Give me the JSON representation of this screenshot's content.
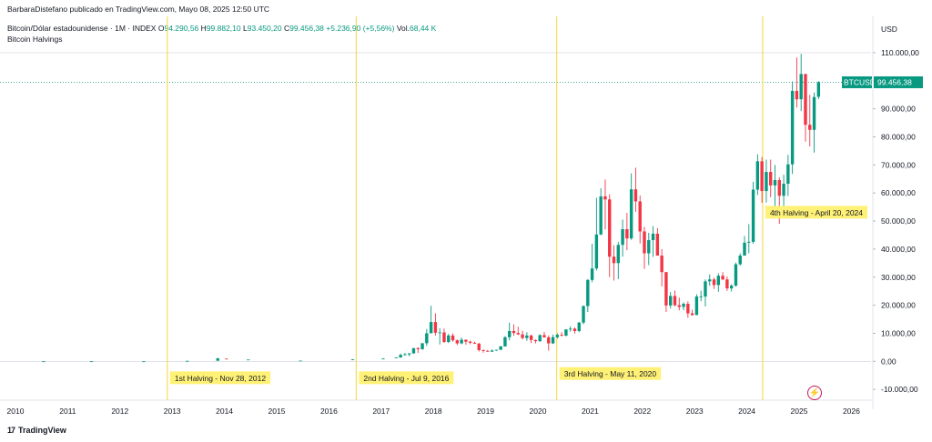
{
  "header": {
    "credit": "BarbaraDistefano publicado en TradingView.com, Mayo 08, 2025 12:50 UTC",
    "symbol": "Bitcoin/Dólar estadounidense · 1M · INDEX",
    "open_label": "O",
    "open": "94.290,56",
    "high_label": "H",
    "high": "99.882,10",
    "low_label": "L",
    "low": "93.450,20",
    "close_label": "C",
    "close": "99.456,38",
    "change": "+5.236,90 (+5,56%)",
    "vol_label": "Vol.",
    "vol": "68,44 K",
    "indicator": "Bitcoin Halvings",
    "currency": "USD"
  },
  "footer": {
    "logo_text": "TradingView",
    "logo_mark": "17"
  },
  "price_tag": {
    "symbol": "BTCUSD",
    "value": "99.456,38"
  },
  "colors": {
    "up": "#089981",
    "down": "#f23645",
    "halving_line": "#f7d53b",
    "label_bg": "#fff176",
    "price_tag_bg": "#089981"
  },
  "chart_data": {
    "type": "candlestick",
    "x_axis": {
      "type": "time",
      "ticks": [
        "2010",
        "2011",
        "2012",
        "2013",
        "2014",
        "2015",
        "2016",
        "2017",
        "2018",
        "2019",
        "2020",
        "2021",
        "2022",
        "2023",
        "2024",
        "2025",
        "2026"
      ]
    },
    "y_axis": {
      "range": [
        -13000,
        115000
      ],
      "ticks": [
        -10000,
        0,
        10000,
        20000,
        30000,
        40000,
        50000,
        60000,
        70000,
        80000,
        90000,
        100000,
        110000
      ],
      "tick_labels": [
        "-10.000,00",
        "0,00",
        "10.000,00",
        "20.000,00",
        "30.000,00",
        "40.000,00",
        "50.000,00",
        "60.000,00",
        "70.000,00",
        "80.000,00",
        "90.000,00",
        "100.000,00",
        "110.000,00"
      ]
    },
    "grid": false,
    "last_price": 99456.38,
    "halvings": [
      {
        "date": "2012-11-28",
        "label": "1st Halving - Nov 28, 2012"
      },
      {
        "date": "2016-07-09",
        "label": "2nd Halving - Jul 9, 2016"
      },
      {
        "date": "2020-05-11",
        "label": "3rd Halving - May 11, 2020"
      },
      {
        "date": "2024-04-20",
        "label": "4th Halving - April 20, 2024"
      }
    ],
    "candles": [
      {
        "t": "2010-07",
        "o": 0,
        "h": 0,
        "l": 0,
        "c": 0
      },
      {
        "t": "2011-06",
        "o": 10,
        "h": 30,
        "l": 5,
        "c": 15
      },
      {
        "t": "2012-06",
        "o": 6,
        "h": 8,
        "l": 5,
        "c": 7
      },
      {
        "t": "2013-04",
        "o": 90,
        "h": 260,
        "l": 70,
        "c": 140
      },
      {
        "t": "2013-11",
        "o": 200,
        "h": 1160,
        "l": 190,
        "c": 1100
      },
      {
        "t": "2014-01",
        "o": 950,
        "h": 1000,
        "l": 800,
        "c": 800
      },
      {
        "t": "2014-06",
        "o": 630,
        "h": 650,
        "l": 560,
        "c": 630
      },
      {
        "t": "2015-06",
        "o": 230,
        "h": 260,
        "l": 220,
        "c": 260
      },
      {
        "t": "2016-06",
        "o": 530,
        "h": 780,
        "l": 520,
        "c": 670
      },
      {
        "t": "2017-01",
        "o": 960,
        "h": 1150,
        "l": 750,
        "c": 970
      },
      {
        "t": "2017-04",
        "o": 1080,
        "h": 1350,
        "l": 1080,
        "c": 1350
      },
      {
        "t": "2017-05",
        "o": 1350,
        "h": 2760,
        "l": 1350,
        "c": 2300
      },
      {
        "t": "2017-06",
        "o": 2300,
        "h": 3000,
        "l": 2000,
        "c": 2500
      },
      {
        "t": "2017-07",
        "o": 2500,
        "h": 2900,
        "l": 1800,
        "c": 2870
      },
      {
        "t": "2017-08",
        "o": 2870,
        "h": 4700,
        "l": 2700,
        "c": 4700
      },
      {
        "t": "2017-09",
        "o": 4700,
        "h": 5000,
        "l": 3000,
        "c": 4340
      },
      {
        "t": "2017-10",
        "o": 4340,
        "h": 6470,
        "l": 4100,
        "c": 6450
      },
      {
        "t": "2017-11",
        "o": 6450,
        "h": 11500,
        "l": 5500,
        "c": 10000
      },
      {
        "t": "2017-12",
        "o": 10000,
        "h": 19800,
        "l": 10000,
        "c": 14000
      },
      {
        "t": "2018-01",
        "o": 14000,
        "h": 17100,
        "l": 9200,
        "c": 10200
      },
      {
        "t": "2018-02",
        "o": 10200,
        "h": 11800,
        "l": 6000,
        "c": 10300
      },
      {
        "t": "2018-03",
        "o": 10300,
        "h": 11700,
        "l": 6600,
        "c": 6900
      },
      {
        "t": "2018-04",
        "o": 6900,
        "h": 9800,
        "l": 6500,
        "c": 9200
      },
      {
        "t": "2018-05",
        "o": 9200,
        "h": 10000,
        "l": 7000,
        "c": 7500
      },
      {
        "t": "2018-06",
        "o": 7500,
        "h": 7800,
        "l": 5800,
        "c": 6400
      },
      {
        "t": "2018-07",
        "o": 6400,
        "h": 8500,
        "l": 6100,
        "c": 7700
      },
      {
        "t": "2018-08",
        "o": 7700,
        "h": 7800,
        "l": 5900,
        "c": 7000
      },
      {
        "t": "2018-09",
        "o": 7000,
        "h": 7400,
        "l": 6100,
        "c": 6600
      },
      {
        "t": "2018-10",
        "o": 6600,
        "h": 7000,
        "l": 6200,
        "c": 6300
      },
      {
        "t": "2018-11",
        "o": 6300,
        "h": 6600,
        "l": 3500,
        "c": 4000
      },
      {
        "t": "2018-12",
        "o": 4000,
        "h": 4200,
        "l": 3100,
        "c": 3700
      },
      {
        "t": "2019-01",
        "o": 3700,
        "h": 4100,
        "l": 3400,
        "c": 3450
      },
      {
        "t": "2019-02",
        "o": 3450,
        "h": 4200,
        "l": 3400,
        "c": 3850
      },
      {
        "t": "2019-03",
        "o": 3850,
        "h": 4100,
        "l": 3700,
        "c": 4100
      },
      {
        "t": "2019-04",
        "o": 4100,
        "h": 5600,
        "l": 4100,
        "c": 5300
      },
      {
        "t": "2019-05",
        "o": 5300,
        "h": 9000,
        "l": 5300,
        "c": 8600
      },
      {
        "t": "2019-06",
        "o": 8600,
        "h": 13800,
        "l": 7500,
        "c": 10800
      },
      {
        "t": "2019-07",
        "o": 10800,
        "h": 13200,
        "l": 9100,
        "c": 10100
      },
      {
        "t": "2019-08",
        "o": 10100,
        "h": 12300,
        "l": 9400,
        "c": 9600
      },
      {
        "t": "2019-09",
        "o": 9600,
        "h": 10900,
        "l": 7800,
        "c": 8300
      },
      {
        "t": "2019-10",
        "o": 8300,
        "h": 10400,
        "l": 7300,
        "c": 9200
      },
      {
        "t": "2019-11",
        "o": 9200,
        "h": 9500,
        "l": 6500,
        "c": 7600
      },
      {
        "t": "2019-12",
        "o": 7600,
        "h": 7800,
        "l": 6400,
        "c": 7200
      },
      {
        "t": "2020-01",
        "o": 7200,
        "h": 9600,
        "l": 6900,
        "c": 9350
      },
      {
        "t": "2020-02",
        "o": 9350,
        "h": 10500,
        "l": 8500,
        "c": 8550
      },
      {
        "t": "2020-03",
        "o": 8550,
        "h": 9200,
        "l": 3800,
        "c": 6400
      },
      {
        "t": "2020-04",
        "o": 6400,
        "h": 9500,
        "l": 6200,
        "c": 8600
      },
      {
        "t": "2020-05",
        "o": 8600,
        "h": 10000,
        "l": 8100,
        "c": 9450
      },
      {
        "t": "2020-06",
        "o": 9450,
        "h": 10400,
        "l": 8900,
        "c": 9150
      },
      {
        "t": "2020-07",
        "o": 9150,
        "h": 11500,
        "l": 8900,
        "c": 11350
      },
      {
        "t": "2020-08",
        "o": 11350,
        "h": 12500,
        "l": 10600,
        "c": 11650
      },
      {
        "t": "2020-09",
        "o": 11650,
        "h": 12100,
        "l": 9900,
        "c": 10800
      },
      {
        "t": "2020-10",
        "o": 10800,
        "h": 14100,
        "l": 10400,
        "c": 13800
      },
      {
        "t": "2020-11",
        "o": 13800,
        "h": 19900,
        "l": 13200,
        "c": 19700
      },
      {
        "t": "2020-12",
        "o": 19700,
        "h": 29300,
        "l": 17600,
        "c": 29000
      },
      {
        "t": "2021-01",
        "o": 29000,
        "h": 41900,
        "l": 28200,
        "c": 33100
      },
      {
        "t": "2021-02",
        "o": 33100,
        "h": 58300,
        "l": 32400,
        "c": 45200
      },
      {
        "t": "2021-03",
        "o": 45200,
        "h": 61700,
        "l": 45000,
        "c": 58800
      },
      {
        "t": "2021-04",
        "o": 58800,
        "h": 64800,
        "l": 47000,
        "c": 57700
      },
      {
        "t": "2021-05",
        "o": 57700,
        "h": 59500,
        "l": 30000,
        "c": 37300
      },
      {
        "t": "2021-06",
        "o": 37300,
        "h": 41300,
        "l": 28800,
        "c": 35000
      },
      {
        "t": "2021-07",
        "o": 35000,
        "h": 42500,
        "l": 29300,
        "c": 41500
      },
      {
        "t": "2021-08",
        "o": 41500,
        "h": 50500,
        "l": 37300,
        "c": 47100
      },
      {
        "t": "2021-09",
        "o": 47100,
        "h": 52900,
        "l": 39600,
        "c": 43800
      },
      {
        "t": "2021-10",
        "o": 43800,
        "h": 67000,
        "l": 43300,
        "c": 61300
      },
      {
        "t": "2021-11",
        "o": 61300,
        "h": 69000,
        "l": 53300,
        "c": 57000
      },
      {
        "t": "2021-12",
        "o": 57000,
        "h": 59100,
        "l": 42000,
        "c": 46300
      },
      {
        "t": "2022-01",
        "o": 46300,
        "h": 47900,
        "l": 33000,
        "c": 38500
      },
      {
        "t": "2022-02",
        "o": 38500,
        "h": 45800,
        "l": 34300,
        "c": 43200
      },
      {
        "t": "2022-03",
        "o": 43200,
        "h": 48200,
        "l": 37200,
        "c": 45500
      },
      {
        "t": "2022-04",
        "o": 45500,
        "h": 47500,
        "l": 37600,
        "c": 37700
      },
      {
        "t": "2022-05",
        "o": 37700,
        "h": 40000,
        "l": 26700,
        "c": 31800
      },
      {
        "t": "2022-06",
        "o": 31800,
        "h": 31900,
        "l": 17600,
        "c": 19900
      },
      {
        "t": "2022-07",
        "o": 19900,
        "h": 24700,
        "l": 18800,
        "c": 23300
      },
      {
        "t": "2022-08",
        "o": 23300,
        "h": 25200,
        "l": 19600,
        "c": 20000
      },
      {
        "t": "2022-09",
        "o": 20000,
        "h": 22700,
        "l": 18200,
        "c": 19400
      },
      {
        "t": "2022-10",
        "o": 19400,
        "h": 21000,
        "l": 18200,
        "c": 20500
      },
      {
        "t": "2022-11",
        "o": 20500,
        "h": 21400,
        "l": 15500,
        "c": 17100
      },
      {
        "t": "2022-12",
        "o": 17100,
        "h": 18400,
        "l": 16300,
        "c": 16500
      },
      {
        "t": "2023-01",
        "o": 16500,
        "h": 23900,
        "l": 16500,
        "c": 23100
      },
      {
        "t": "2023-02",
        "o": 23100,
        "h": 25200,
        "l": 21400,
        "c": 23100
      },
      {
        "t": "2023-03",
        "o": 23100,
        "h": 29200,
        "l": 19600,
        "c": 28500
      },
      {
        "t": "2023-04",
        "o": 28500,
        "h": 31000,
        "l": 26900,
        "c": 29200
      },
      {
        "t": "2023-05",
        "o": 29200,
        "h": 29800,
        "l": 25800,
        "c": 27200
      },
      {
        "t": "2023-06",
        "o": 27200,
        "h": 31400,
        "l": 24800,
        "c": 30500
      },
      {
        "t": "2023-07",
        "o": 30500,
        "h": 31800,
        "l": 28900,
        "c": 29200
      },
      {
        "t": "2023-08",
        "o": 29200,
        "h": 30200,
        "l": 25100,
        "c": 26000
      },
      {
        "t": "2023-09",
        "o": 26000,
        "h": 27500,
        "l": 24900,
        "c": 27000
      },
      {
        "t": "2023-10",
        "o": 27000,
        "h": 35200,
        "l": 26600,
        "c": 34600
      },
      {
        "t": "2023-11",
        "o": 34600,
        "h": 38500,
        "l": 34100,
        "c": 37700
      },
      {
        "t": "2023-12",
        "o": 37700,
        "h": 44700,
        "l": 37600,
        "c": 42300
      },
      {
        "t": "2024-01",
        "o": 42300,
        "h": 48900,
        "l": 38500,
        "c": 42600
      },
      {
        "t": "2024-02",
        "o": 42600,
        "h": 64000,
        "l": 41900,
        "c": 61200
      },
      {
        "t": "2024-03",
        "o": 61200,
        "h": 73800,
        "l": 59300,
        "c": 71300
      },
      {
        "t": "2024-04",
        "o": 71300,
        "h": 72800,
        "l": 56500,
        "c": 60700
      },
      {
        "t": "2024-05",
        "o": 60700,
        "h": 71900,
        "l": 56600,
        "c": 67500
      },
      {
        "t": "2024-06",
        "o": 67500,
        "h": 71900,
        "l": 58500,
        "c": 62700
      },
      {
        "t": "2024-07",
        "o": 62700,
        "h": 70000,
        "l": 53500,
        "c": 64600
      },
      {
        "t": "2024-08",
        "o": 64600,
        "h": 65600,
        "l": 49000,
        "c": 59000
      },
      {
        "t": "2024-09",
        "o": 59000,
        "h": 66500,
        "l": 52500,
        "c": 63300
      },
      {
        "t": "2024-10",
        "o": 63300,
        "h": 73600,
        "l": 58900,
        "c": 70200
      },
      {
        "t": "2024-11",
        "o": 70200,
        "h": 99800,
        "l": 66800,
        "c": 96400
      },
      {
        "t": "2024-12",
        "o": 96400,
        "h": 108300,
        "l": 90500,
        "c": 93400
      },
      {
        "t": "2025-01",
        "o": 93400,
        "h": 109600,
        "l": 89200,
        "c": 102400
      },
      {
        "t": "2025-02",
        "o": 102400,
        "h": 102500,
        "l": 78300,
        "c": 84300
      },
      {
        "t": "2025-03",
        "o": 84300,
        "h": 95000,
        "l": 76600,
        "c": 82500
      },
      {
        "t": "2025-04",
        "o": 82500,
        "h": 95800,
        "l": 74400,
        "c": 94200
      },
      {
        "t": "2025-05",
        "o": 94290.56,
        "h": 99882.1,
        "l": 93450.2,
        "c": 99456.38
      }
    ]
  }
}
